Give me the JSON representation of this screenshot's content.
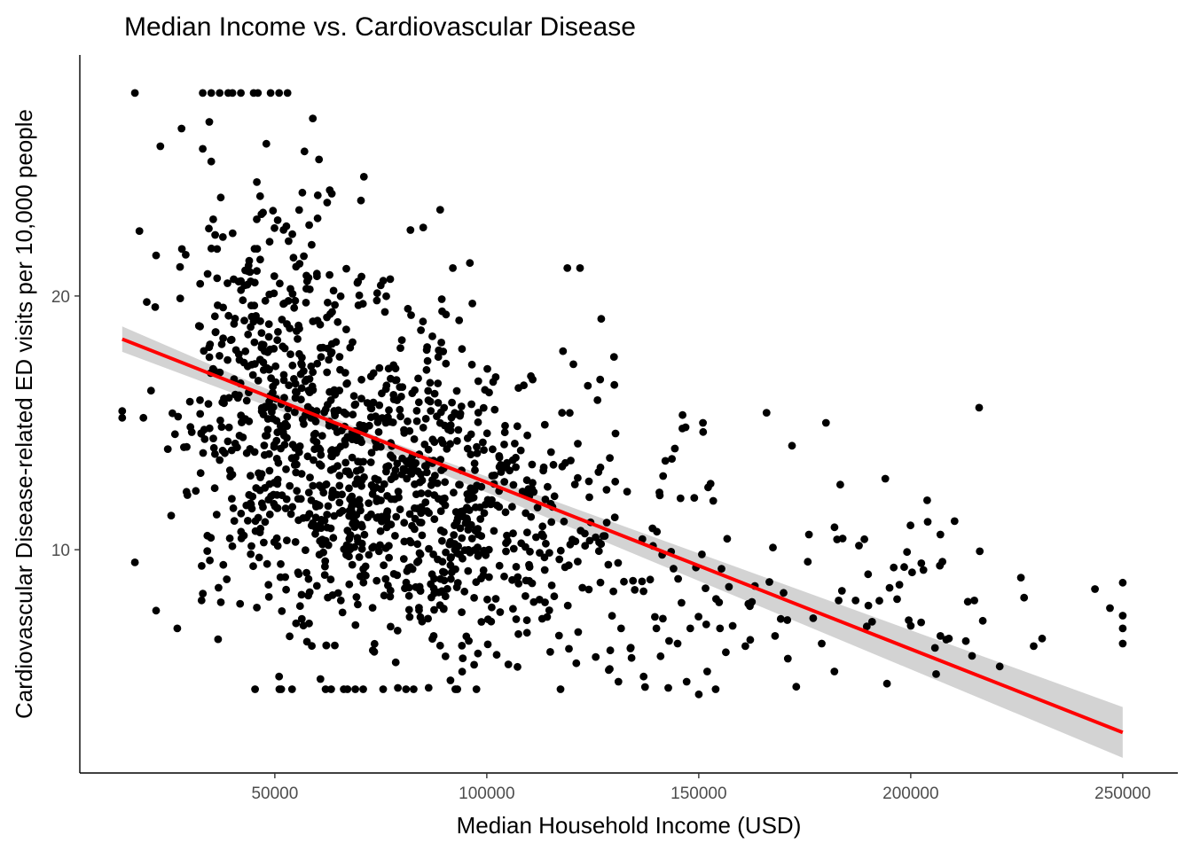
{
  "chart_data": {
    "type": "scatter",
    "title": "Median Income vs. Cardiovascular Disease",
    "xlabel": "Median Household Income (USD)",
    "ylabel": "Cardiovascular Disease-related ED visits per 10,000 people",
    "xlim": [
      4000,
      263000
    ],
    "ylim": [
      1.2,
      29.5
    ],
    "xticks": [
      50000,
      100000,
      150000,
      200000,
      250000
    ],
    "xtick_labels": [
      "50000",
      "100000",
      "150000",
      "200000",
      "250000"
    ],
    "yticks": [
      10,
      20
    ],
    "ytick_labels": [
      "10",
      "20"
    ],
    "grid": false,
    "point_color": "#000000",
    "fit_line_color": "#ff0000",
    "confidence_band_color": "#d3d3d3",
    "fit_line": {
      "x": [
        14000,
        250000
      ],
      "y": [
        18.3,
        2.8
      ]
    },
    "confidence_band": {
      "x": [
        14000,
        75000,
        250000
      ],
      "upper": [
        18.8,
        14.4,
        3.8
      ],
      "lower": [
        17.8,
        14.0,
        1.8
      ]
    },
    "cluster_generator": {
      "note": "scatter points are synthesized deterministically in script from cluster summaries below"
    },
    "clusters": [
      {
        "cx": 48000,
        "cy": 16.0,
        "sx": 11000,
        "sy": 4.0,
        "n": 380
      },
      {
        "cx": 68000,
        "cy": 13.0,
        "sx": 14000,
        "sy": 3.6,
        "n": 420
      },
      {
        "cx": 92000,
        "cy": 11.5,
        "sx": 14000,
        "sy": 3.0,
        "n": 380
      },
      {
        "cx": 125000,
        "cy": 10.0,
        "sx": 16000,
        "sy": 2.6,
        "n": 130
      },
      {
        "cx": 180000,
        "cy": 8.0,
        "sx": 30000,
        "sy": 2.3,
        "n": 60
      }
    ],
    "extra_points": [
      {
        "x": 17000,
        "y": 28.0
      },
      {
        "x": 33000,
        "y": 28.0
      },
      {
        "x": 35000,
        "y": 28.0
      },
      {
        "x": 37000,
        "y": 28.0
      },
      {
        "x": 39000,
        "y": 28.0
      },
      {
        "x": 40000,
        "y": 28.0
      },
      {
        "x": 42000,
        "y": 28.0
      },
      {
        "x": 45000,
        "y": 28.0
      },
      {
        "x": 46000,
        "y": 28.0
      },
      {
        "x": 49000,
        "y": 28.0
      },
      {
        "x": 51000,
        "y": 28.0
      },
      {
        "x": 53000,
        "y": 28.0
      },
      {
        "x": 14000,
        "y": 15.2
      },
      {
        "x": 17000,
        "y": 9.5
      },
      {
        "x": 19000,
        "y": 15.2
      },
      {
        "x": 22000,
        "y": 21.6
      },
      {
        "x": 23000,
        "y": 25.9
      },
      {
        "x": 28000,
        "y": 26.6
      },
      {
        "x": 27000,
        "y": 6.9
      },
      {
        "x": 22000,
        "y": 7.6
      },
      {
        "x": 51000,
        "y": 5.0
      },
      {
        "x": 150000,
        "y": 4.3
      },
      {
        "x": 173000,
        "y": 4.6
      },
      {
        "x": 206000,
        "y": 5.1
      },
      {
        "x": 221000,
        "y": 5.4
      },
      {
        "x": 250000,
        "y": 8.7
      },
      {
        "x": 250000,
        "y": 7.4
      },
      {
        "x": 250000,
        "y": 6.9
      },
      {
        "x": 250000,
        "y": 6.3
      },
      {
        "x": 247000,
        "y": 7.7
      },
      {
        "x": 226000,
        "y": 8.9
      },
      {
        "x": 231000,
        "y": 6.5
      },
      {
        "x": 229000,
        "y": 6.2
      },
      {
        "x": 194000,
        "y": 12.8
      },
      {
        "x": 204000,
        "y": 11.1
      },
      {
        "x": 207000,
        "y": 10.6
      },
      {
        "x": 166000,
        "y": 15.4
      },
      {
        "x": 180000,
        "y": 15.0
      },
      {
        "x": 172000,
        "y": 14.1
      },
      {
        "x": 151000,
        "y": 15.0
      },
      {
        "x": 130000,
        "y": 17.6
      },
      {
        "x": 127000,
        "y": 19.1
      },
      {
        "x": 119000,
        "y": 21.1
      },
      {
        "x": 122000,
        "y": 21.1
      },
      {
        "x": 96000,
        "y": 21.3
      },
      {
        "x": 92000,
        "y": 21.1
      },
      {
        "x": 85000,
        "y": 22.7
      },
      {
        "x": 82000,
        "y": 22.6
      },
      {
        "x": 89000,
        "y": 23.4
      },
      {
        "x": 71000,
        "y": 24.7
      },
      {
        "x": 57000,
        "y": 25.7
      },
      {
        "x": 48000,
        "y": 26.0
      },
      {
        "x": 33000,
        "y": 25.8
      },
      {
        "x": 35000,
        "y": 25.3
      },
      {
        "x": 183000,
        "y": 8.0
      },
      {
        "x": 187000,
        "y": 8.0
      },
      {
        "x": 190000,
        "y": 7.8
      },
      {
        "x": 200000,
        "y": 7.0
      },
      {
        "x": 207000,
        "y": 6.6
      },
      {
        "x": 209000,
        "y": 6.5
      },
      {
        "x": 215000,
        "y": 8.0
      },
      {
        "x": 217000,
        "y": 7.2
      },
      {
        "x": 213000,
        "y": 6.4
      },
      {
        "x": 196000,
        "y": 9.3
      },
      {
        "x": 195000,
        "y": 8.5
      },
      {
        "x": 203000,
        "y": 9.2
      },
      {
        "x": 182000,
        "y": 5.2
      },
      {
        "x": 179000,
        "y": 6.3
      },
      {
        "x": 177000,
        "y": 7.3
      },
      {
        "x": 176000,
        "y": 10.6
      },
      {
        "x": 170000,
        "y": 8.3
      },
      {
        "x": 168000,
        "y": 6.6
      },
      {
        "x": 161000,
        "y": 6.2
      },
      {
        "x": 158000,
        "y": 7.0
      },
      {
        "x": 155000,
        "y": 6.9
      },
      {
        "x": 148000,
        "y": 6.9
      },
      {
        "x": 145000,
        "y": 6.3
      },
      {
        "x": 152000,
        "y": 5.2
      },
      {
        "x": 141000,
        "y": 5.8
      },
      {
        "x": 137000,
        "y": 5.0
      },
      {
        "x": 129000,
        "y": 5.3
      }
    ]
  }
}
